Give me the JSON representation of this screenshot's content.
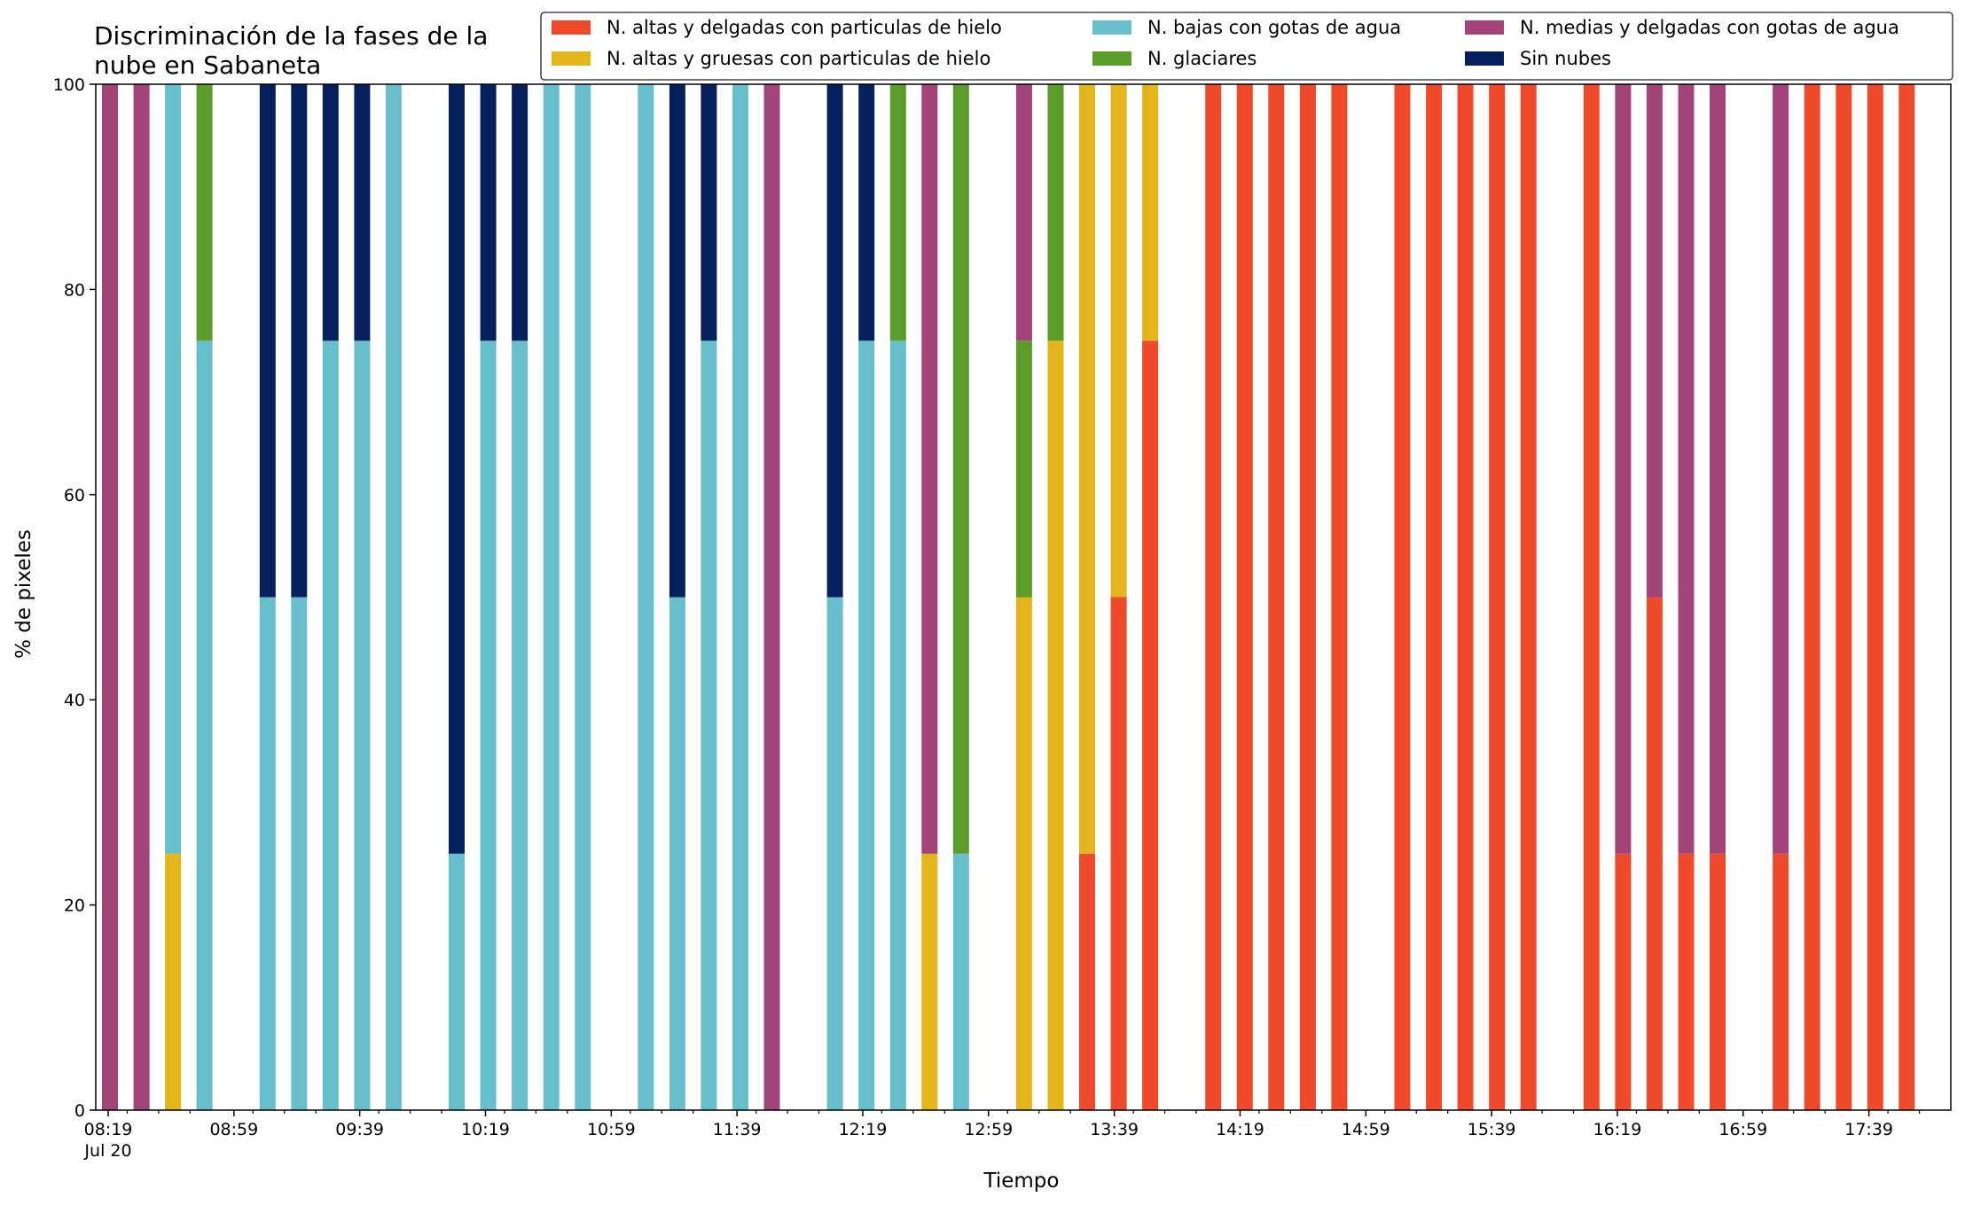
{
  "chart_data": {
    "type": "bar",
    "stacked": true,
    "title_lines": [
      "Discriminación de la fases de la",
      "nube en Sabaneta"
    ],
    "xlabel": "Tiempo",
    "ylabel": "% de pixeles",
    "ylim": [
      0,
      100
    ],
    "yticks": [
      0,
      20,
      40,
      60,
      80,
      100
    ],
    "grid": false,
    "legend_position": "top-right",
    "x_start": "08:19",
    "x_end": "18:09",
    "x_tick_labels": [
      {
        "time": "08:19",
        "label": "08:19",
        "sublabel": "Jul 20"
      },
      {
        "time": "08:59",
        "label": "08:59"
      },
      {
        "time": "09:39",
        "label": "09:39"
      },
      {
        "time": "10:19",
        "label": "10:19"
      },
      {
        "time": "10:59",
        "label": "10:59"
      },
      {
        "time": "11:39",
        "label": "11:39"
      },
      {
        "time": "12:19",
        "label": "12:19"
      },
      {
        "time": "12:59",
        "label": "12:59"
      },
      {
        "time": "13:39",
        "label": "13:39"
      },
      {
        "time": "14:19",
        "label": "14:19"
      },
      {
        "time": "14:59",
        "label": "14:59"
      },
      {
        "time": "15:39",
        "label": "15:39"
      },
      {
        "time": "16:19",
        "label": "16:19"
      },
      {
        "time": "16:59",
        "label": "16:59"
      },
      {
        "time": "17:39",
        "label": "17:39"
      }
    ],
    "x_minor_tick_times": [
      "08:29",
      "08:39",
      "08:49",
      "09:09",
      "09:19",
      "09:29",
      "09:49",
      "09:59",
      "10:09",
      "10:29",
      "10:39",
      "10:49",
      "11:09",
      "11:19",
      "11:29",
      "11:49",
      "11:59",
      "12:09",
      "12:29",
      "12:39",
      "12:49",
      "13:09",
      "13:19",
      "13:29",
      "13:49",
      "13:59",
      "14:09",
      "14:29",
      "14:39",
      "14:49",
      "15:09",
      "15:19",
      "15:29",
      "15:49",
      "15:59",
      "16:09",
      "16:29",
      "16:39",
      "16:49",
      "17:09",
      "17:19",
      "17:29",
      "17:49",
      "17:59"
    ],
    "series": [
      {
        "name": "N. altas y delgadas con particulas de hielo",
        "color": "#ee4a2b"
      },
      {
        "name": "N. altas y gruesas con particulas de hielo",
        "color": "#e3b51a"
      },
      {
        "name": "N. bajas con gotas de agua",
        "color": "#67bfcb"
      },
      {
        "name": "N. glaciares",
        "color": "#5c9c2b"
      },
      {
        "name": "N. medias y delgadas con gotas de agua",
        "color": "#a34479"
      },
      {
        "name": "Sin nubes",
        "color": "#05205d"
      }
    ],
    "bars": [
      {
        "time": "08:19",
        "values": [
          0,
          0,
          0,
          0,
          100,
          0
        ]
      },
      {
        "time": "08:24",
        "values": [
          0,
          0,
          0,
          0,
          100,
          0
        ]
      },
      {
        "time": "08:29",
        "values": [
          0,
          25,
          75,
          0,
          0,
          0
        ]
      },
      {
        "time": "08:34",
        "values": [
          0,
          0,
          75,
          25,
          0,
          0
        ]
      },
      {
        "time": "08:44",
        "values": [
          0,
          0,
          50,
          0,
          0,
          50
        ]
      },
      {
        "time": "08:49",
        "values": [
          0,
          0,
          50,
          0,
          0,
          50
        ]
      },
      {
        "time": "08:54",
        "values": [
          0,
          0,
          75,
          0,
          0,
          25
        ]
      },
      {
        "time": "08:59",
        "values": [
          0,
          0,
          75,
          0,
          0,
          25
        ]
      },
      {
        "time": "09:04",
        "values": [
          0,
          0,
          100,
          0,
          0,
          0
        ]
      },
      {
        "time": "09:14",
        "values": [
          0,
          0,
          25,
          0,
          0,
          75
        ]
      },
      {
        "time": "09:19",
        "values": [
          0,
          0,
          75,
          0,
          0,
          25
        ]
      },
      {
        "time": "09:24",
        "values": [
          0,
          0,
          75,
          0,
          0,
          25
        ]
      },
      {
        "time": "09:29",
        "values": [
          0,
          0,
          100,
          0,
          0,
          0
        ]
      },
      {
        "time": "09:34",
        "values": [
          0,
          0,
          100,
          0,
          0,
          0
        ]
      },
      {
        "time": "09:44",
        "values": [
          0,
          0,
          100,
          0,
          0,
          0
        ]
      },
      {
        "time": "09:49",
        "values": [
          0,
          0,
          50,
          0,
          0,
          50
        ]
      },
      {
        "time": "09:54",
        "values": [
          0,
          0,
          75,
          0,
          0,
          25
        ]
      },
      {
        "time": "09:59",
        "values": [
          0,
          0,
          100,
          0,
          0,
          0
        ]
      },
      {
        "time": "10:04",
        "values": [
          0,
          0,
          0,
          0,
          100,
          0
        ]
      },
      {
        "time": "10:14",
        "values": [
          0,
          0,
          50,
          0,
          0,
          50
        ]
      },
      {
        "time": "10:19",
        "values": [
          0,
          0,
          75,
          0,
          0,
          25
        ]
      },
      {
        "time": "10:24",
        "values": [
          0,
          0,
          75,
          25,
          0,
          0
        ]
      },
      {
        "time": "10:29",
        "values": [
          0,
          25,
          0,
          0,
          75,
          0
        ]
      },
      {
        "time": "10:34",
        "values": [
          0,
          0,
          25,
          75,
          0,
          0
        ]
      },
      {
        "time": "10:44",
        "values": [
          0,
          50,
          0,
          25,
          25,
          0
        ]
      },
      {
        "time": "10:49",
        "values": [
          0,
          75,
          0,
          25,
          0,
          0
        ]
      },
      {
        "time": "10:54",
        "values": [
          25,
          75,
          0,
          0,
          0,
          0
        ]
      },
      {
        "time": "10:59",
        "values": [
          50,
          50,
          0,
          0,
          0,
          0
        ]
      },
      {
        "time": "11:04",
        "values": [
          75,
          25,
          0,
          0,
          0,
          0
        ]
      },
      {
        "time": "11:14",
        "values": [
          100,
          0,
          0,
          0,
          0,
          0
        ]
      },
      {
        "time": "11:19",
        "values": [
          100,
          0,
          0,
          0,
          0,
          0
        ]
      },
      {
        "time": "11:24",
        "values": [
          100,
          0,
          0,
          0,
          0,
          0
        ]
      },
      {
        "time": "11:29",
        "values": [
          100,
          0,
          0,
          0,
          0,
          0
        ]
      },
      {
        "time": "11:34",
        "values": [
          100,
          0,
          0,
          0,
          0,
          0
        ]
      },
      {
        "time": "11:44",
        "values": [
          100,
          0,
          0,
          0,
          0,
          0
        ]
      },
      {
        "time": "11:49",
        "values": [
          100,
          0,
          0,
          0,
          0,
          0
        ]
      },
      {
        "time": "11:54",
        "values": [
          100,
          0,
          0,
          0,
          0,
          0
        ]
      },
      {
        "time": "11:59",
        "values": [
          100,
          0,
          0,
          0,
          0,
          0
        ]
      },
      {
        "time": "12:04",
        "values": [
          100,
          0,
          0,
          0,
          0,
          0
        ]
      },
      {
        "time": "12:14",
        "values": [
          100,
          0,
          0,
          0,
          0,
          0
        ]
      },
      {
        "time": "12:19",
        "values": [
          25,
          0,
          0,
          0,
          75,
          0
        ]
      },
      {
        "time": "12:24",
        "values": [
          50,
          0,
          0,
          0,
          50,
          0
        ]
      },
      {
        "time": "12:29",
        "values": [
          25,
          0,
          0,
          0,
          75,
          0
        ]
      },
      {
        "time": "12:34",
        "values": [
          25,
          0,
          0,
          0,
          75,
          0
        ]
      },
      {
        "time": "12:44",
        "values": [
          25,
          0,
          0,
          0,
          75,
          0
        ]
      },
      {
        "time": "12:49",
        "values": [
          100,
          0,
          0,
          0,
          0,
          0
        ]
      },
      {
        "time": "12:54",
        "values": [
          100,
          0,
          0,
          0,
          0,
          0
        ]
      },
      {
        "time": "12:59",
        "values": [
          100,
          0,
          0,
          0,
          0,
          0
        ]
      },
      {
        "time": "13:04",
        "values": [
          100,
          0,
          0,
          0,
          0,
          0
        ]
      }
    ],
    "bar_time_map_note_x": [
      "08:19",
      "08:24",
      "08:29",
      "08:34",
      "08:44",
      "08:49",
      "08:54",
      "08:59",
      "09:04",
      "09:14",
      "09:19",
      "09:24",
      "09:29",
      "09:34",
      "09:44",
      "09:49",
      "09:54",
      "09:59",
      "10:04",
      "10:14",
      "10:19",
      "10:24",
      "10:29",
      "10:34",
      "10:44",
      "10:49",
      "10:54",
      "10:59",
      "11:04",
      "11:14",
      "11:19",
      "11:24",
      "11:29",
      "11:34",
      "11:44",
      "11:49",
      "11:54",
      "11:59",
      "12:04",
      "12:14",
      "12:19",
      "12:24",
      "12:29",
      "12:34",
      "12:44",
      "12:49",
      "12:54",
      "12:59",
      "13:04"
    ]
  }
}
